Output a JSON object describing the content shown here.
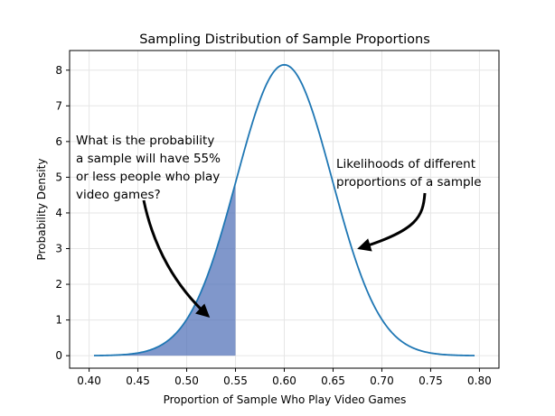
{
  "chart_data": {
    "type": "line",
    "title": "Sampling Distribution of Sample Proportions",
    "xlabel": "Proportion of Sample Who Play Video Games",
    "ylabel": "Probability Density",
    "xlim": [
      0.38,
      0.82
    ],
    "ylim": [
      -0.35,
      8.55
    ],
    "xticks": [
      0.4,
      0.45,
      0.5,
      0.55,
      0.6,
      0.65,
      0.7,
      0.75,
      0.8
    ],
    "xtick_labels": [
      "0.40",
      "0.45",
      "0.50",
      "0.55",
      "0.60",
      "0.65",
      "0.70",
      "0.75",
      "0.80"
    ],
    "yticks": [
      0,
      1,
      2,
      3,
      4,
      5,
      6,
      7,
      8
    ],
    "ytick_labels": [
      "0",
      "1",
      "2",
      "3",
      "4",
      "5",
      "6",
      "7",
      "8"
    ],
    "grid": true,
    "legend": "none",
    "series": [
      {
        "distribution": "normal",
        "mean": 0.6,
        "std": 0.049,
        "x_range": [
          0.405,
          0.795
        ],
        "peak_density": 8.15,
        "color": "#1f77b4"
      }
    ],
    "shaded_region": {
      "x_from": 0.405,
      "x_to": 0.55,
      "color": "#4a6bb5",
      "opacity": 0.7
    },
    "annotations": [
      {
        "lines": [
          "What is the probability",
          "a sample will have 55%",
          "or less people who play",
          "video games?"
        ],
        "arrow_to": [
          0.52,
          1.05
        ]
      },
      {
        "lines": [
          "Likelihoods of different",
          "proportions of a sample"
        ],
        "arrow_to": [
          0.67,
          2.95
        ]
      }
    ]
  }
}
